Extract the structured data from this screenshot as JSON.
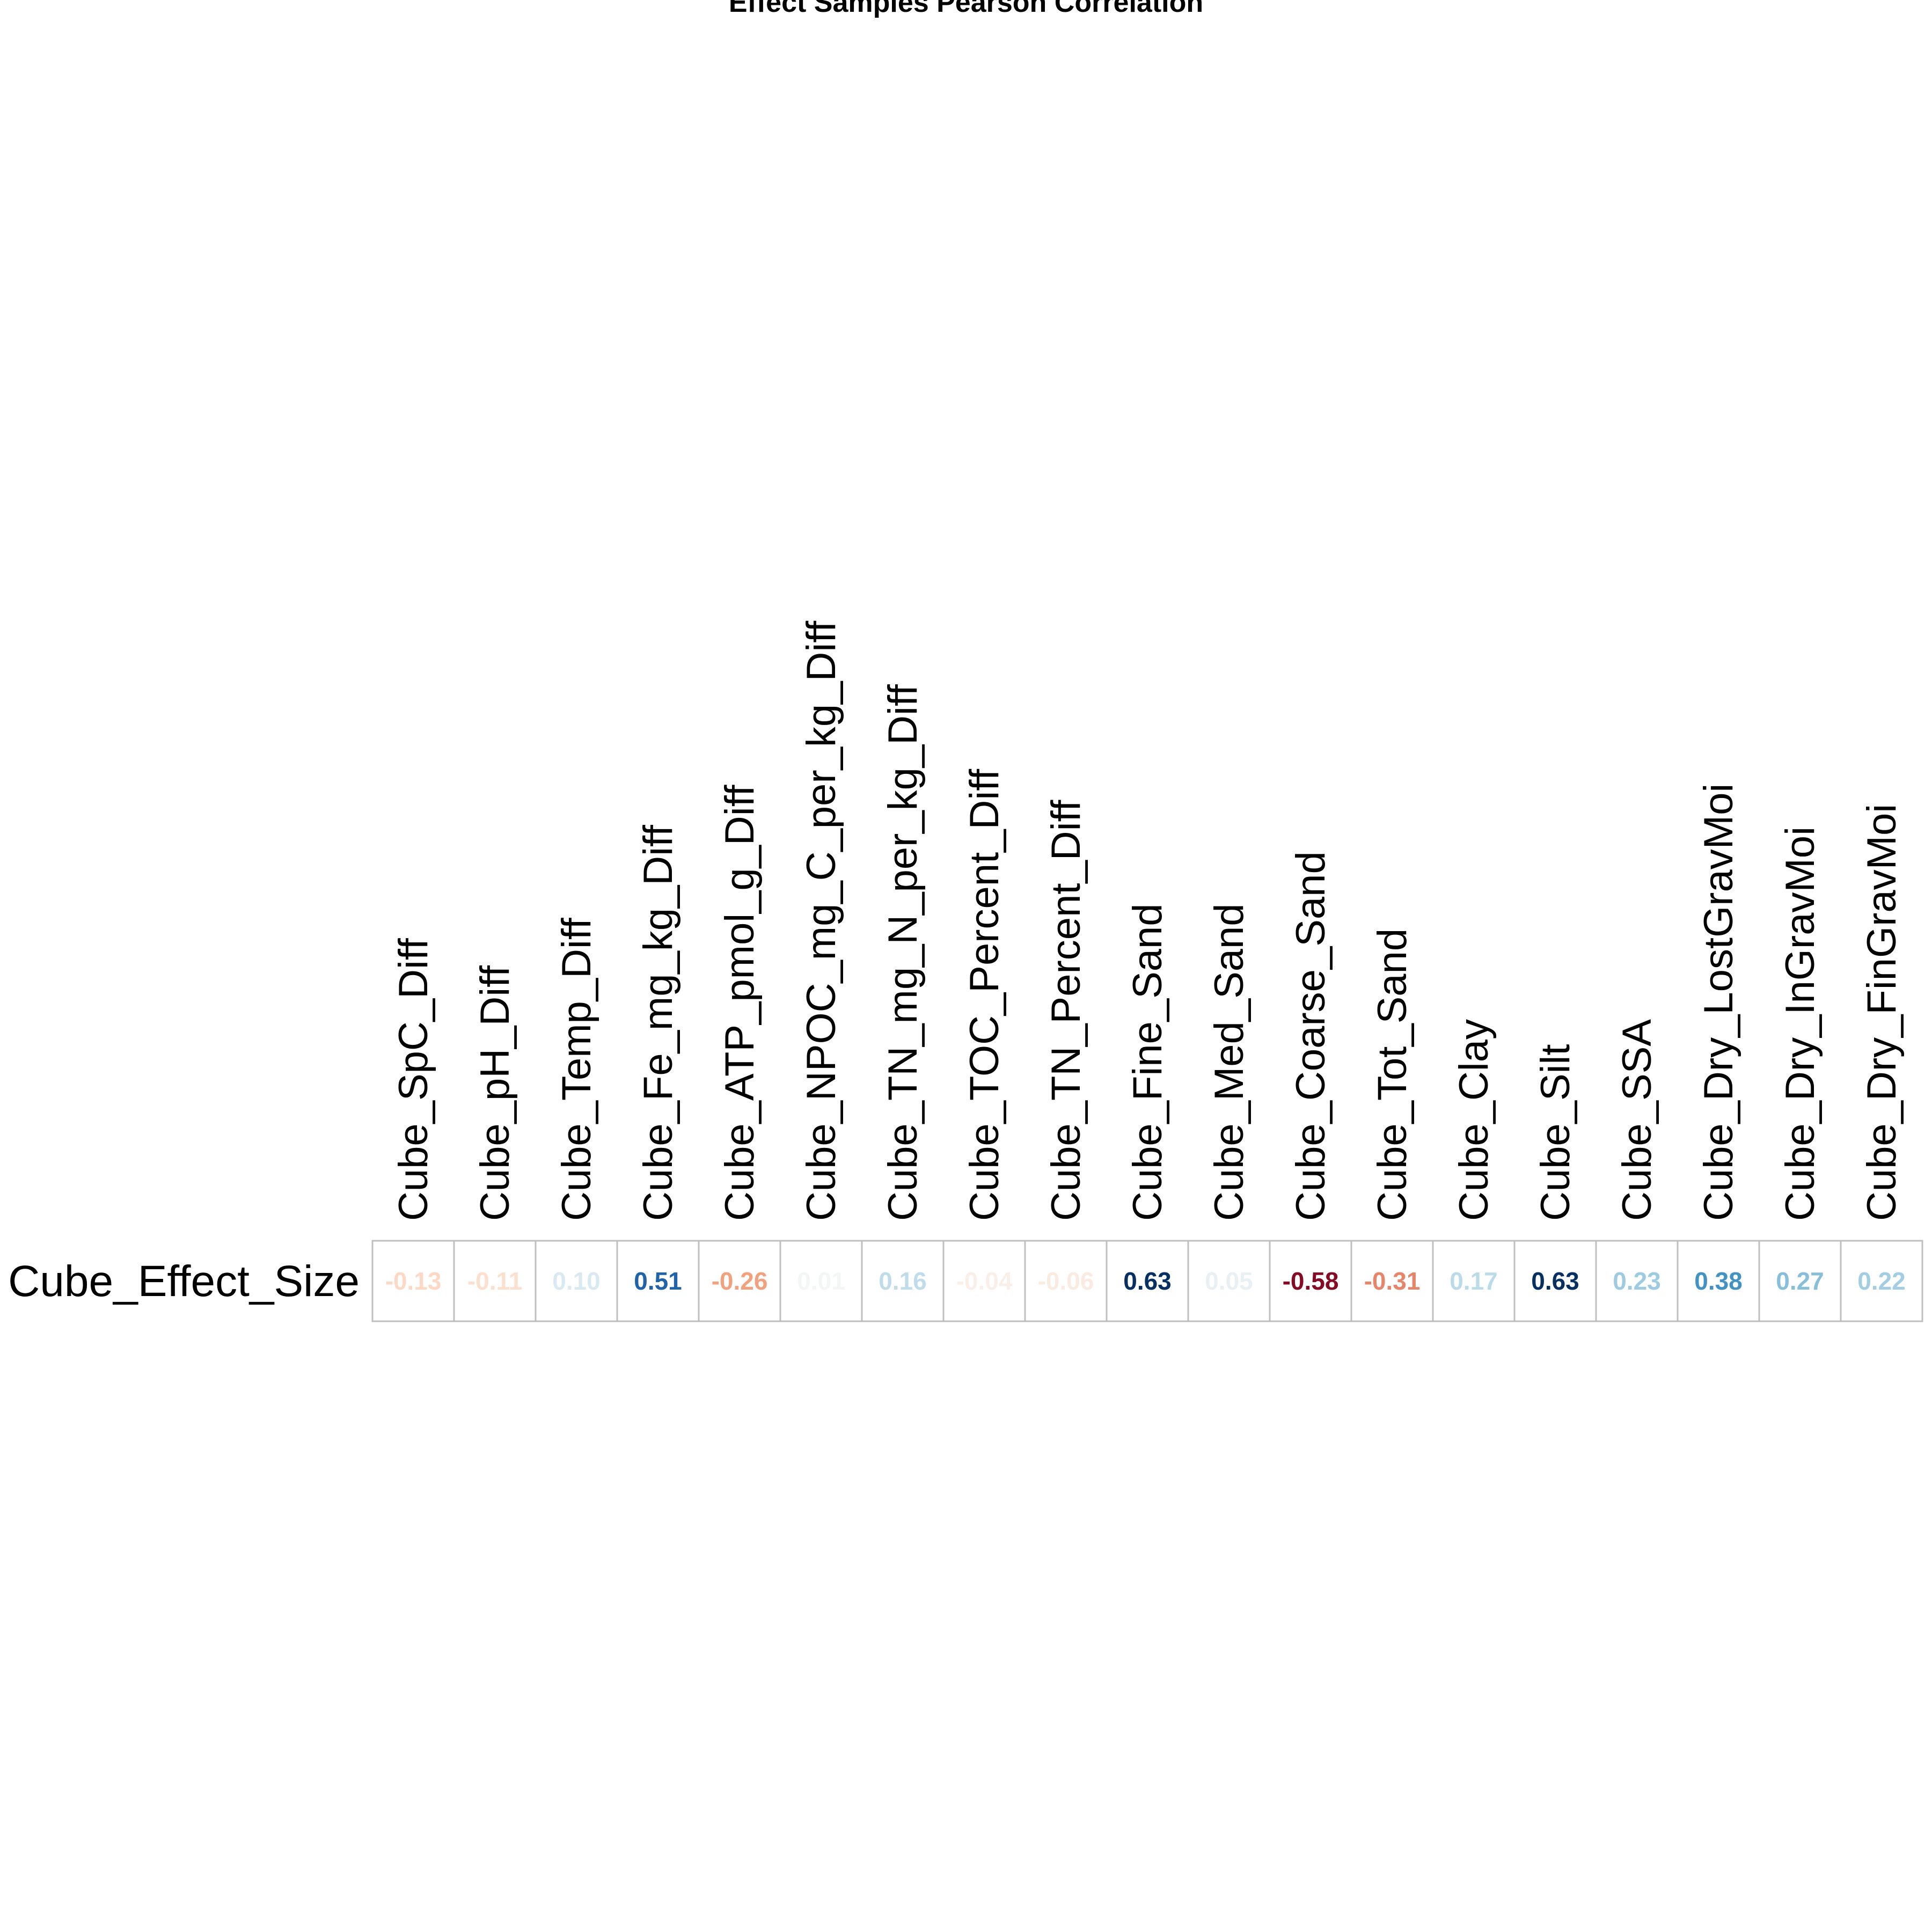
{
  "chart_data": {
    "type": "heatmap",
    "title": "Effect Samples Pearson Correlation",
    "rows": [
      "Cube_Effect_Size"
    ],
    "columns": [
      "Cube_SpC_Diff",
      "Cube_pH_Diff",
      "Cube_Temp_Diff",
      "Cube_Fe_mg_kg_Diff",
      "Cube_ATP_pmol_g_Diff",
      "Cube_NPOC_mg_C_per_kg_Diff",
      "Cube_TN_mg_N_per_kg_Diff",
      "Cube_TOC_Percent_Diff",
      "Cube_TN_Percent_Diff",
      "Cube_Fine_Sand",
      "Cube_Med_Sand",
      "Cube_Coarse_Sand",
      "Cube_Tot_Sand",
      "Cube_Clay",
      "Cube_Silt",
      "Cube_SSA",
      "Cube_Dry_LostGravMoi",
      "Cube_Dry_InGravMoi",
      "Cube_Dry_FinGravMoi"
    ],
    "values": [
      [
        -0.13,
        -0.11,
        0.1,
        0.51,
        -0.26,
        0.01,
        0.16,
        -0.04,
        -0.06,
        0.63,
        0.05,
        -0.58,
        -0.31,
        0.17,
        0.63,
        0.23,
        0.38,
        0.27,
        0.22
      ]
    ],
    "value_labels": [
      [
        "-0.13",
        "-0.11",
        "0.10",
        "0.51",
        "-0.26",
        "0.01",
        "0.16",
        "-0.04",
        "-0.06",
        "0.63",
        "0.05",
        "-0.58",
        "-0.31",
        "0.17",
        "0.63",
        "0.23",
        "0.38",
        "0.27",
        "0.22"
      ]
    ],
    "color_scale": {
      "min": -0.63,
      "max": 0.63,
      "negative_color": "#67001f",
      "neutral_color": "#f7f7f7",
      "positive_color": "#053061"
    },
    "legend": "none",
    "grid": true
  }
}
